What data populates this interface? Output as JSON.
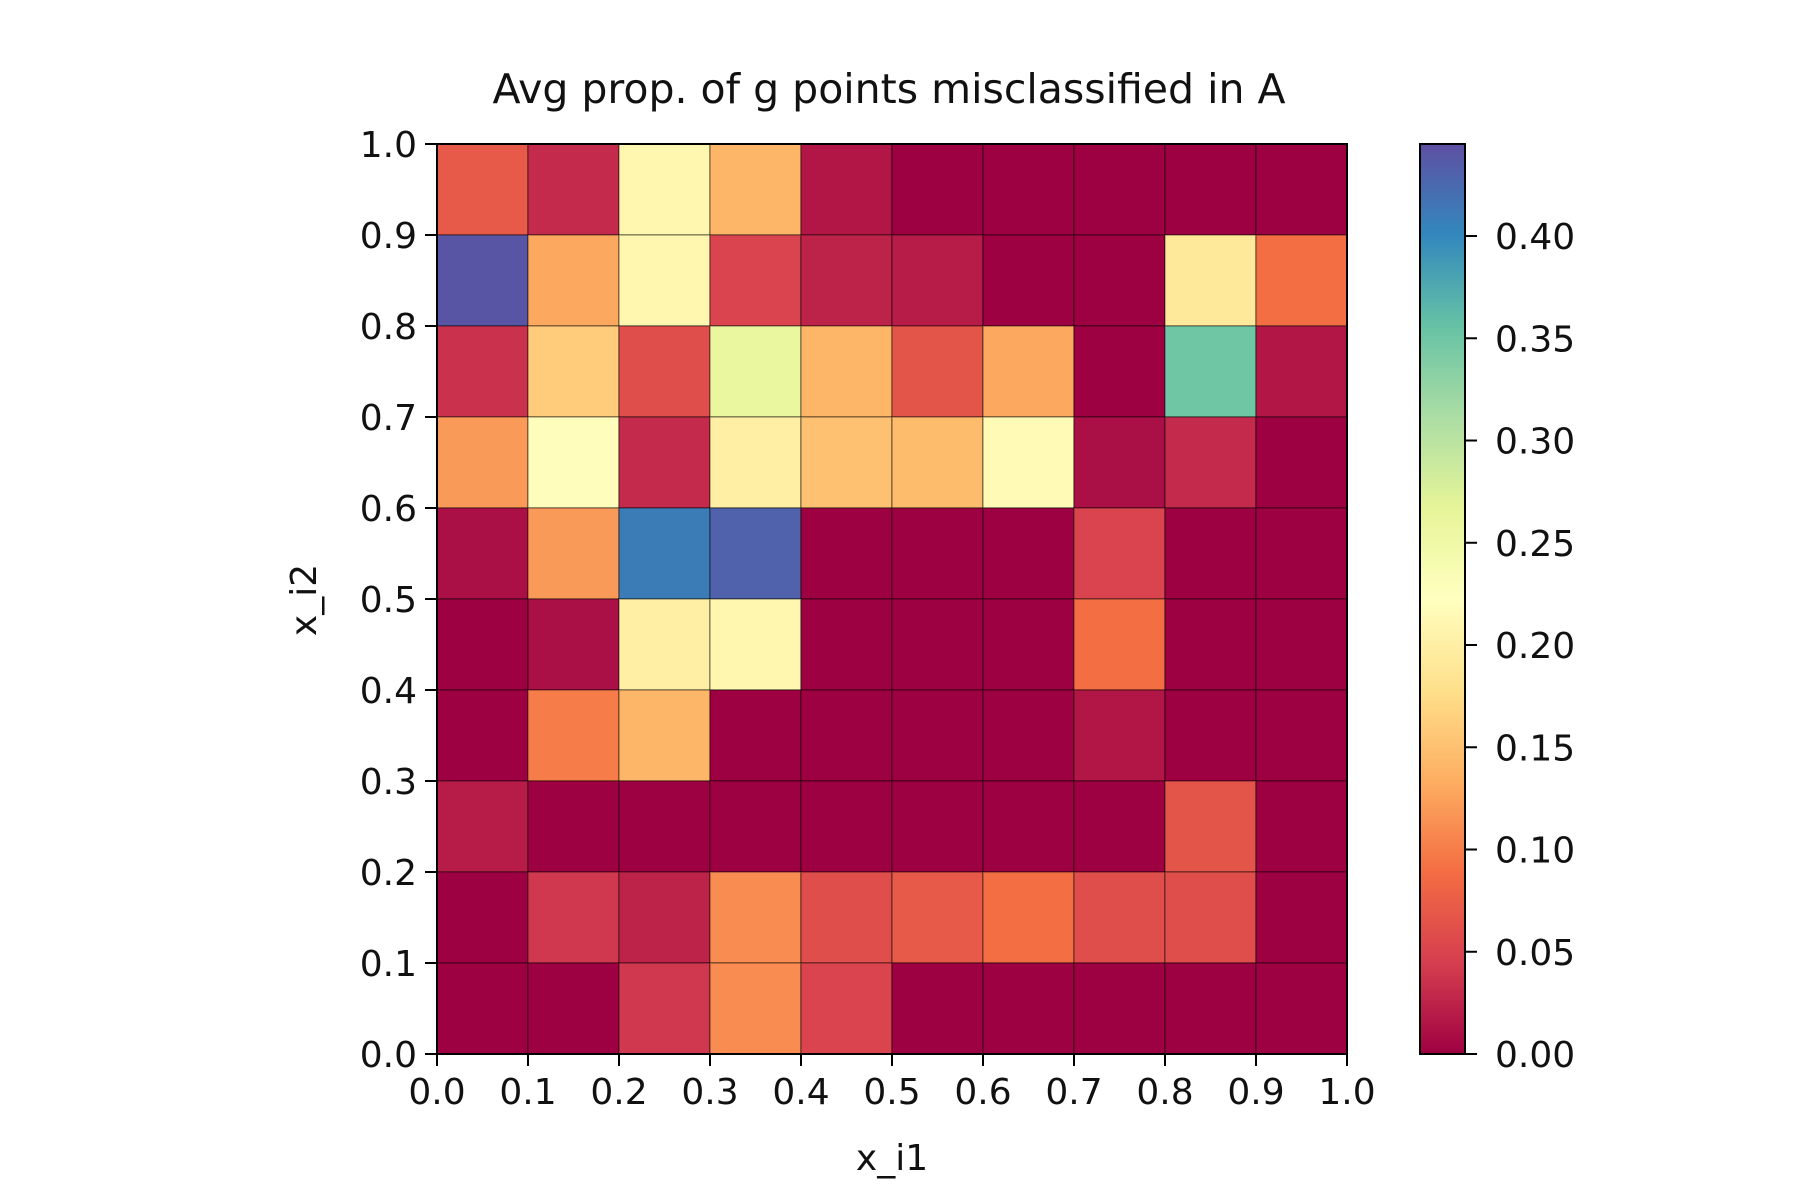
{
  "chart_data": {
    "type": "heatmap",
    "title": "Avg prop. of g points misclassified in A",
    "xlabel": "x_i1",
    "ylabel": "x_i2",
    "xlim": [
      0.0,
      1.0
    ],
    "ylim": [
      0.0,
      1.0
    ],
    "x_ticks": [
      "0.0",
      "0.1",
      "0.2",
      "0.3",
      "0.4",
      "0.5",
      "0.6",
      "0.7",
      "0.8",
      "0.9",
      "1.0"
    ],
    "y_ticks": [
      "0.0",
      "0.1",
      "0.2",
      "0.3",
      "0.4",
      "0.5",
      "0.6",
      "0.7",
      "0.8",
      "0.9",
      "1.0"
    ],
    "colormap": "Spectral",
    "colorbar": {
      "range": [
        0.0,
        0.445
      ],
      "ticks": [
        "0.00",
        "0.05",
        "0.10",
        "0.15",
        "0.20",
        "0.25",
        "0.30",
        "0.35",
        "0.40"
      ]
    },
    "grid": true,
    "x_bins": [
      0.0,
      0.1,
      0.2,
      0.3,
      0.4,
      0.5,
      0.6,
      0.7,
      0.8,
      0.9,
      1.0
    ],
    "y_bins": [
      0.0,
      0.1,
      0.2,
      0.3,
      0.4,
      0.5,
      0.6,
      0.7,
      0.8,
      0.9,
      1.0
    ],
    "values_rows_top_to_bottom": [
      [
        0.07,
        0.03,
        0.21,
        0.14,
        0.015,
        0.0,
        0.0,
        0.0,
        0.0,
        0.0
      ],
      [
        0.44,
        0.13,
        0.21,
        0.05,
        0.025,
        0.02,
        0.0,
        0.0,
        0.19,
        0.09
      ],
      [
        0.035,
        0.16,
        0.06,
        0.26,
        0.14,
        0.065,
        0.13,
        0.0,
        0.35,
        0.015
      ],
      [
        0.12,
        0.22,
        0.03,
        0.2,
        0.15,
        0.145,
        0.215,
        0.01,
        0.03,
        0.0
      ],
      [
        0.01,
        0.12,
        0.41,
        0.43,
        0.0,
        0.0,
        0.0,
        0.05,
        0.0,
        0.0
      ],
      [
        0.0,
        0.01,
        0.2,
        0.21,
        0.0,
        0.0,
        0.0,
        0.09,
        0.0,
        0.0
      ],
      [
        0.0,
        0.1,
        0.14,
        0.0,
        0.0,
        0.0,
        0.0,
        0.015,
        0.0,
        0.0
      ],
      [
        0.02,
        0.0,
        0.0,
        0.0,
        0.0,
        0.0,
        0.0,
        0.0,
        0.065,
        0.0
      ],
      [
        0.0,
        0.04,
        0.025,
        0.11,
        0.06,
        0.07,
        0.09,
        0.06,
        0.06,
        0.0
      ],
      [
        0.0,
        0.0,
        0.04,
        0.11,
        0.05,
        0.0,
        0.0,
        0.0,
        0.0,
        0.0
      ]
    ]
  }
}
